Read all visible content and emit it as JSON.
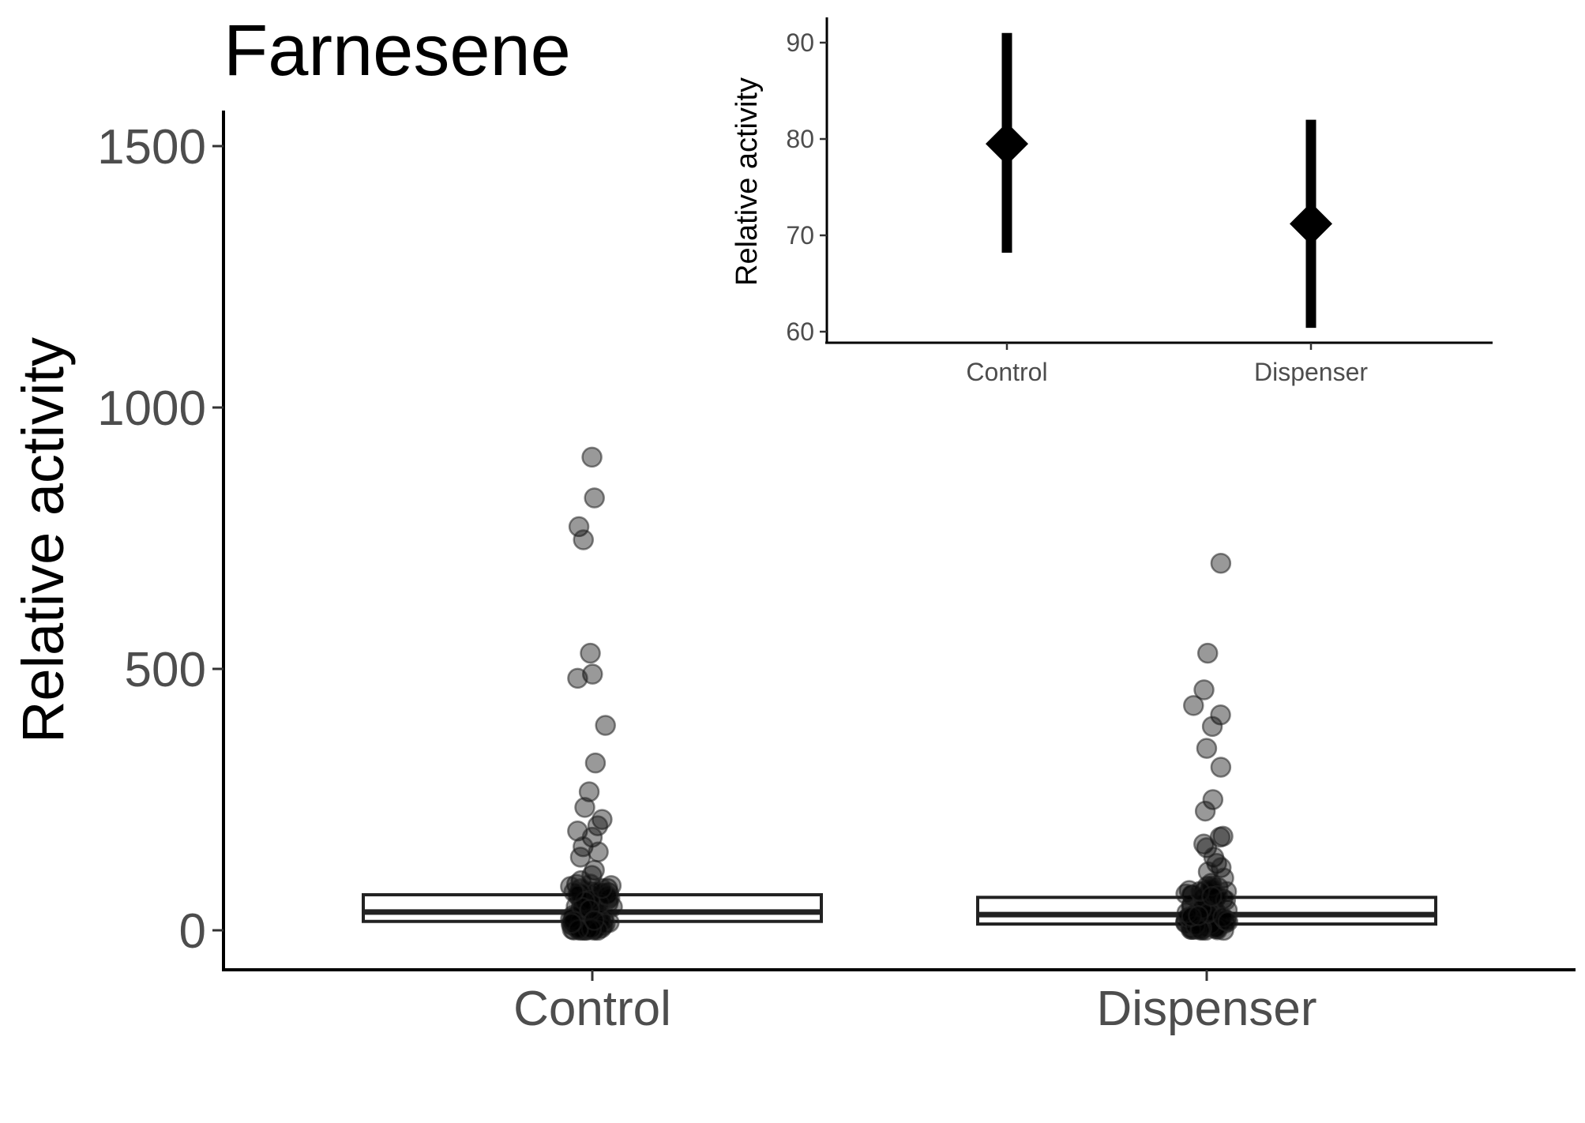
{
  "chart_data": [
    {
      "type": "box",
      "title": "Farnesene",
      "xlabel": "",
      "ylabel": "Relative activity",
      "categories": [
        "Control",
        "Dispenser"
      ],
      "ylim": [
        -75,
        1575
      ],
      "yticks": [
        0,
        500,
        1000,
        1500
      ],
      "grid": false,
      "legend": "none",
      "boxes": [
        {
          "category": "Control",
          "q1": 17,
          "median": 35,
          "q3": 68
        },
        {
          "category": "Dispenser",
          "q1": 12,
          "median": 30,
          "q3": 63
        }
      ],
      "points": [
        {
          "category": "Control",
          "values": [
            905,
            827,
            772,
            747,
            530,
            490,
            482,
            392,
            320,
            265,
            235,
            212,
            200,
            190,
            178,
            160,
            150,
            140,
            115,
            105,
            95,
            88,
            80,
            72,
            65,
            58,
            52,
            46,
            40,
            35,
            30,
            25,
            20,
            15,
            10,
            5,
            2,
            0,
            0
          ]
        },
        {
          "category": "Dispenser",
          "values": [
            702,
            530,
            460,
            430,
            412,
            390,
            348,
            312,
            250,
            228,
            180,
            178,
            165,
            158,
            140,
            128,
            120,
            112,
            100,
            90,
            82,
            75,
            68,
            60,
            54,
            48,
            42,
            36,
            30,
            25,
            20,
            15,
            10,
            5,
            2,
            0,
            0
          ]
        }
      ],
      "point_color": "#000000",
      "point_alpha": 0.4
    },
    {
      "type": "pointrange",
      "title": "",
      "xlabel": "",
      "ylabel": "Relative activity",
      "categories": [
        "Control",
        "Dispenser"
      ],
      "ylim": [
        59,
        92.5
      ],
      "yticks": [
        60,
        70,
        80,
        90
      ],
      "grid": false,
      "legend": "none",
      "estimates": [
        {
          "category": "Control",
          "mean": 79.5,
          "lower": 68.2,
          "upper": 91.0
        },
        {
          "category": "Dispenser",
          "mean": 71.2,
          "lower": 60.4,
          "upper": 82.0
        }
      ],
      "marker": "diamond",
      "color": "#000000"
    }
  ]
}
